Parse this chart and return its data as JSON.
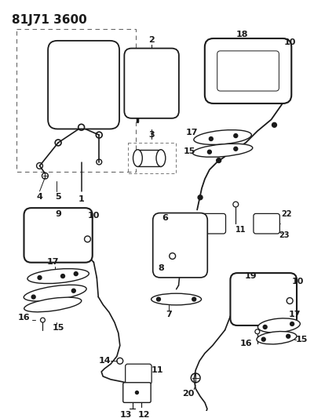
{
  "title": "81J71 3600",
  "bg_color": "#ffffff",
  "line_color": "#1a1a1a",
  "title_fontsize": 11,
  "label_fontsize": 8
}
